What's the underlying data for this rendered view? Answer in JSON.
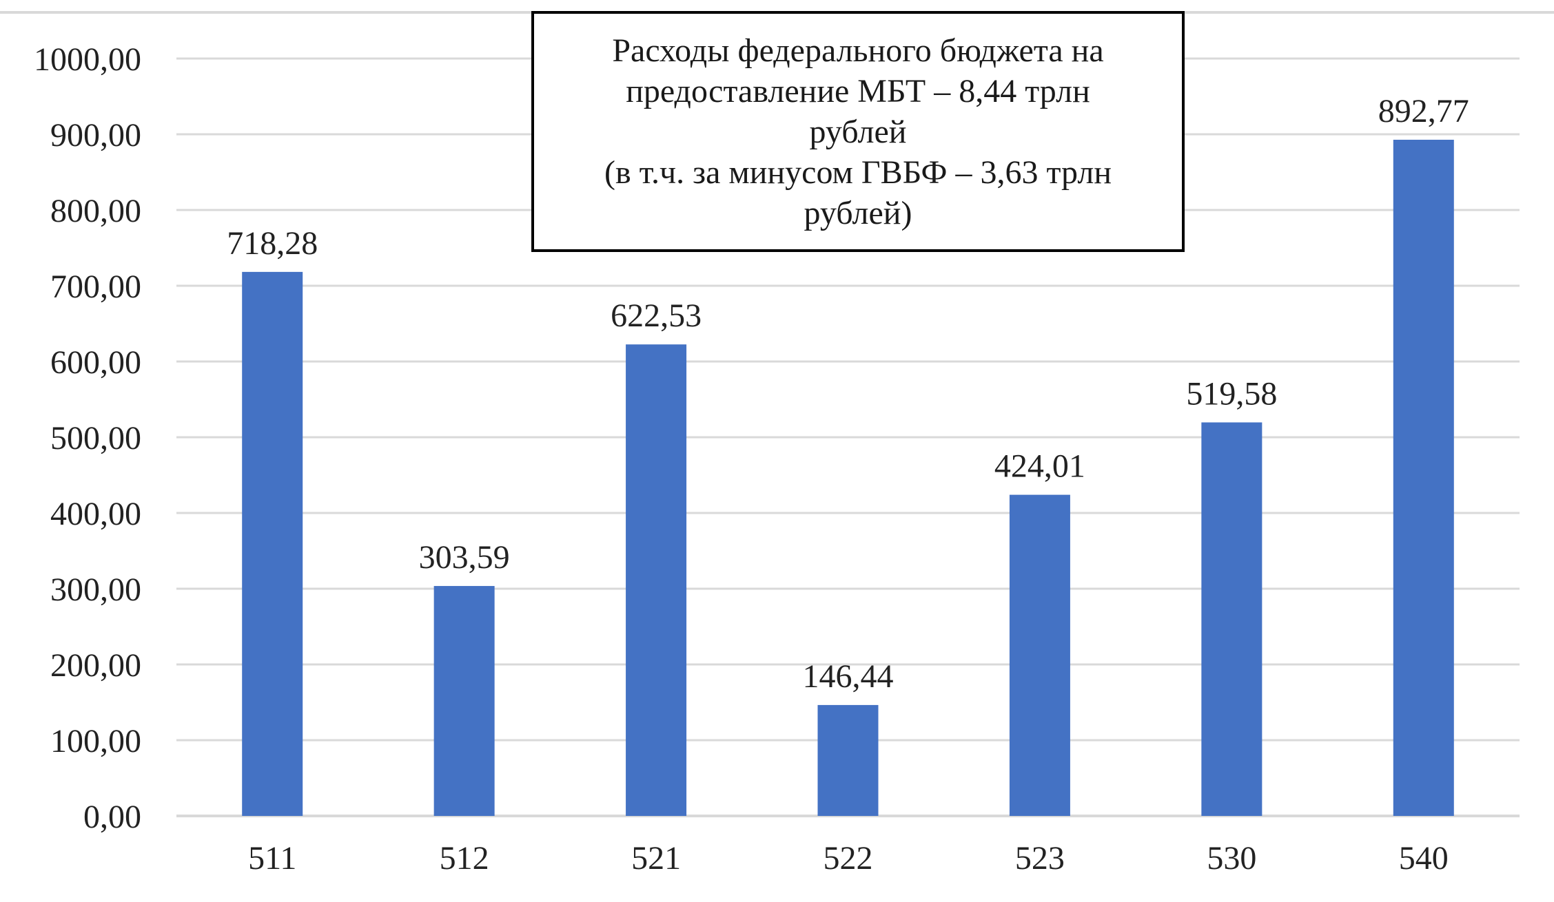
{
  "chart_data": {
    "type": "bar",
    "categories": [
      "511",
      "512",
      "521",
      "522",
      "523",
      "530",
      "540"
    ],
    "values": [
      718.28,
      303.59,
      622.53,
      146.44,
      424.01,
      519.58,
      892.77
    ],
    "data_labels": [
      "718,28",
      "303,59",
      "622,53",
      "146,44",
      "424,01",
      "519,58",
      "892,77"
    ],
    "y_ticks": [
      "0,00",
      "100,00",
      "200,00",
      "300,00",
      "400,00",
      "500,00",
      "600,00",
      "700,00",
      "800,00",
      "900,00",
      "1000,00"
    ],
    "ylim": [
      0,
      1000
    ],
    "grid": true,
    "legend": "none",
    "annotation": "Расходы федерального бюджета на\nпредоставление МБТ – 8,44 трлн\nрублей\n(в т.ч. за минусом ГВБФ – 3,63 трлн\nрублей)",
    "colors": {
      "bar": "#4472C4",
      "grid": "#D9D9D9"
    }
  }
}
